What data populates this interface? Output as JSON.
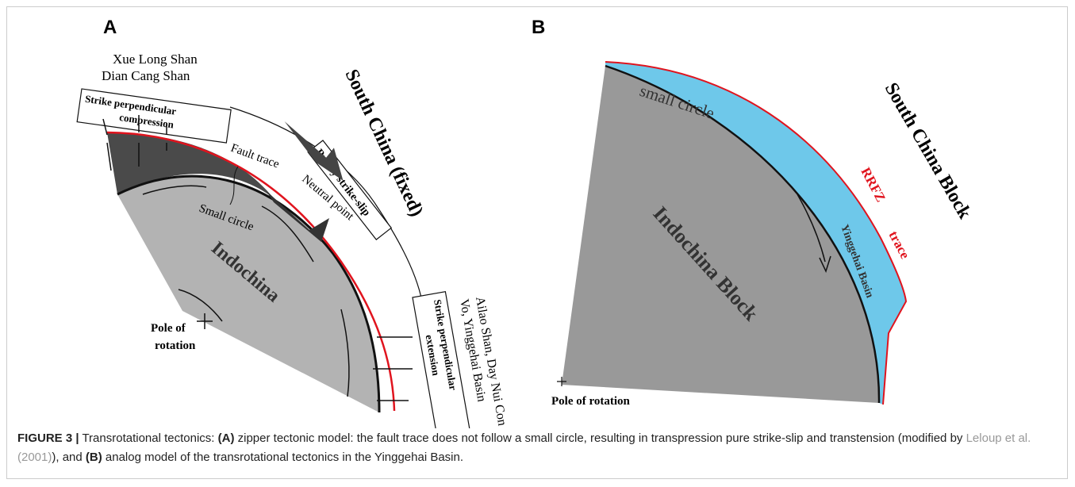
{
  "panels": [
    {
      "label": "A",
      "labels": {
        "xue": "Xue Long Shan",
        "dian": "Dian Cang Shan",
        "compression": [
          "Strike perpendicular",
          "compression"
        ],
        "fault_trace": "Fault trace",
        "strike_slip": "Purely strike-slip",
        "neutral": "Neutral point",
        "small_circle": "Small circle",
        "block": "Indochina",
        "south_china": "South China (fixed)",
        "pole": [
          "Pole of",
          "rotation"
        ],
        "ailao": [
          "Ailao Shan, Day Nui Con",
          "Vo, Yinggehai Basin"
        ],
        "extension": [
          "Strike perpendicular",
          "extension"
        ]
      }
    },
    {
      "label": "B",
      "labels": {
        "small_circle": "small   circle",
        "south_china": "South China Block",
        "rrfz": "RRFZ",
        "trace": "trace",
        "block": "Indochina Block",
        "basin": "Yinggehai Basin",
        "pole": "Pole of rotation"
      }
    }
  ],
  "caption": {
    "figure": "FIGURE 3 |",
    "lead": " Transrotational tectonics: ",
    "a": "(A)",
    "a_text": " zipper tectonic model: the fault trace does not follow a small circle, resulting in transpression pure strike-slip and transtension (modified by ",
    "ref": "Leloup et al. (2001)",
    "mid": "), and ",
    "b": "(B)",
    "b_text": " analog model of the transrotational tectonics in the Yinggehai Basin."
  }
}
